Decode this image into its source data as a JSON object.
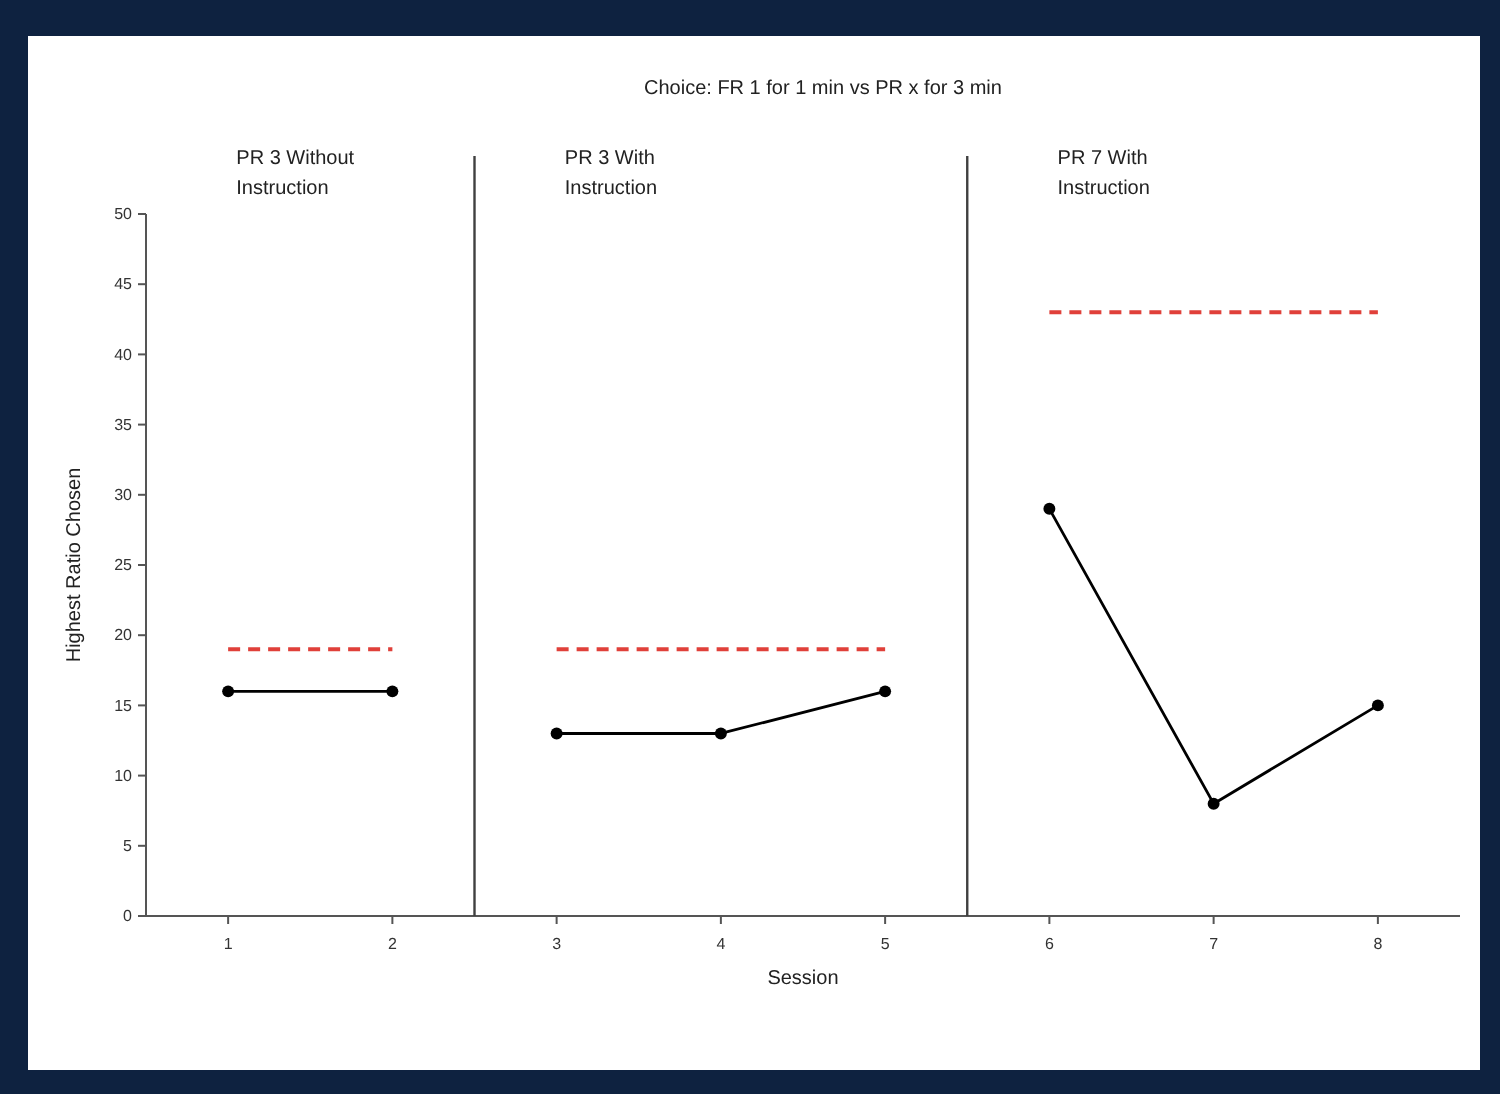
{
  "chart_data": {
    "type": "line",
    "title": "Choice: FR 1 for 1 min vs PR x for 3 min",
    "xlabel": "Session",
    "ylabel": "Highest Ratio Chosen",
    "annotations": [
      "PR 3 Without Instruction",
      "PR 3 With Instruction",
      "PR 7 With Instruction"
    ],
    "xlim": [
      0.5,
      8.5
    ],
    "xticks": [
      1,
      2,
      3,
      4,
      5,
      6,
      7,
      8
    ],
    "ylim": [
      0,
      50
    ],
    "yticks": [
      0,
      5,
      10,
      15,
      20,
      25,
      30,
      35,
      40,
      45,
      50
    ],
    "marker": "circle",
    "line_style": "solid",
    "ref_lines": [
      {
        "axis": "x",
        "value": 2.5,
        "color": "#404040"
      },
      {
        "axis": "x",
        "value": 5.5,
        "color": "#404040"
      }
    ],
    "series": [
      {
        "x": [
          1,
          2
        ],
        "values": [
          16,
          16
        ],
        "color": "#000000"
      },
      {
        "x": [
          3,
          4,
          5
        ],
        "values": [
          13,
          13,
          16
        ],
        "color": "#000000"
      },
      {
        "x": [
          6,
          7,
          8
        ],
        "values": [
          29,
          8,
          15
        ],
        "color": "#000000"
      },
      {
        "x": [
          1,
          2
        ],
        "values": [
          19,
          19
        ],
        "color": "#e0403a",
        "line_style": "dashed",
        "marker": "none"
      },
      {
        "x": [
          3,
          5
        ],
        "values": [
          19,
          19
        ],
        "color": "#e0403a",
        "line_style": "dashed",
        "marker": "none"
      },
      {
        "x": [
          6,
          8
        ],
        "values": [
          43,
          43
        ],
        "color": "#e0403a",
        "line_style": "dashed",
        "marker": "none"
      }
    ]
  }
}
